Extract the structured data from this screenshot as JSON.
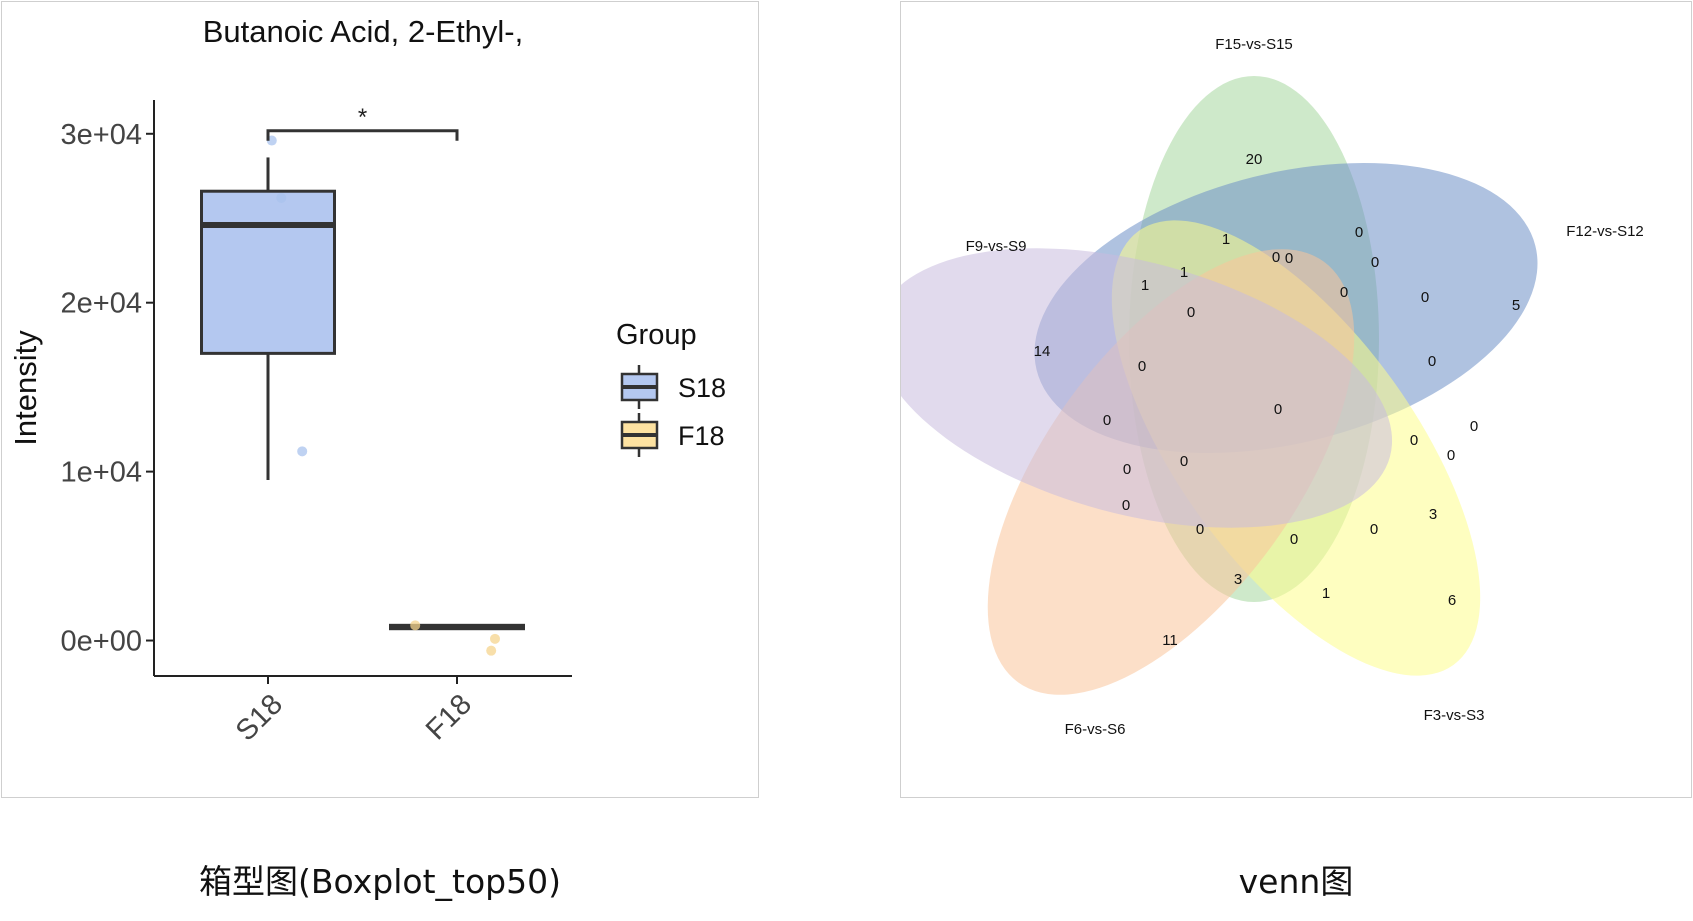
{
  "captions": {
    "left": "箱型图(Boxplot_top50)",
    "right": "venn图"
  },
  "chart_data": [
    {
      "type": "box",
      "title": "Butanoic Acid, 2-Ethyl-,",
      "xlabel": "",
      "ylabel": "Intensity",
      "categories": [
        "S18",
        "F18"
      ],
      "ylim": [
        -2100,
        32000
      ],
      "yticks": [
        0,
        10000,
        20000,
        30000
      ],
      "ytick_labels": [
        "0e+00",
        "1e+04",
        "2e+04",
        "3e+04"
      ],
      "legend": {
        "title": "Group",
        "position": "right",
        "entries": [
          "S18",
          "F18"
        ]
      },
      "colors": {
        "S18": "#b4c8f0",
        "F18": "#fde2a1",
        "S18_point": "#a9c3ee",
        "F18_point": "#f6d48e"
      },
      "boxes": [
        {
          "group": "S18",
          "min": 9500,
          "q1": 17000,
          "median": 24600,
          "q3": 26600,
          "max": 28600
        },
        {
          "group": "F18",
          "min": 700,
          "q1": 700,
          "median": 800,
          "q3": 900,
          "max": 900
        }
      ],
      "points": [
        {
          "group": "S18",
          "y": 29600,
          "jitter": 0.02
        },
        {
          "group": "S18",
          "y": 26200,
          "jitter": 0.07
        },
        {
          "group": "S18",
          "y": 11200,
          "jitter": 0.18
        },
        {
          "group": "F18",
          "y": 900,
          "jitter": -0.22
        },
        {
          "group": "F18",
          "y": 100,
          "jitter": 0.2
        },
        {
          "group": "F18",
          "y": -600,
          "jitter": 0.18
        }
      ],
      "significance": {
        "from": "S18",
        "to": "F18",
        "y": 30000,
        "label": "*"
      }
    },
    {
      "type": "venn",
      "sets": [
        {
          "name": "F15-vs-S15",
          "color": "#a6d79e"
        },
        {
          "name": "F12-vs-S12",
          "color": "#6e90c6"
        },
        {
          "name": "F3-vs-S3",
          "color": "#fdfd8c"
        },
        {
          "name": "F6-vs-S6",
          "color": "#f9c49a"
        },
        {
          "name": "F9-vs-S9",
          "color": "#c9bbdf"
        }
      ],
      "region_counts": [
        20,
        5,
        6,
        11,
        14,
        1,
        0,
        0,
        0,
        1,
        1,
        0,
        0,
        0,
        0,
        0,
        0,
        0,
        0,
        0,
        0,
        0,
        3,
        0,
        0,
        0,
        0,
        0,
        3,
        0,
        1
      ]
    }
  ]
}
